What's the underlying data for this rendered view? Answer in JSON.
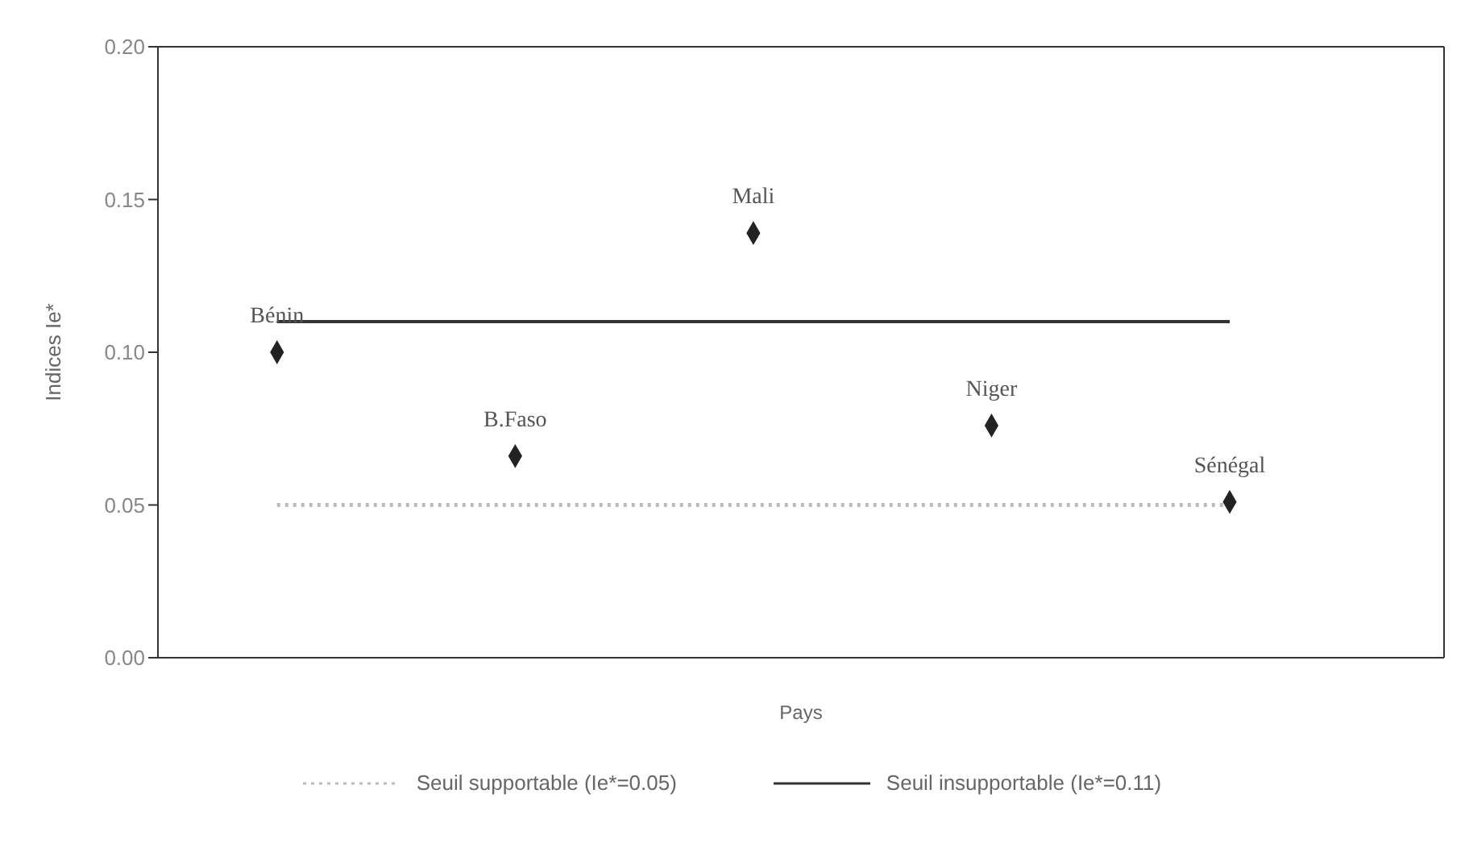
{
  "chart_data": {
    "type": "scatter",
    "xlabel": "Pays",
    "ylabel": "Indices Ie*",
    "categories": [
      "Bénin",
      "B.Faso",
      "Mali",
      "Niger",
      "Sénégal"
    ],
    "series": [
      {
        "color": "#222222",
        "values": [
          0.1,
          0.066,
          0.139,
          0.076,
          0.051
        ]
      }
    ],
    "ylim": [
      0,
      0.2
    ],
    "yticks": [
      {
        "value": 0,
        "label": "0.00"
      },
      {
        "value": 0.05,
        "label": "0.05"
      },
      {
        "value": 0.1,
        "label": "0.10"
      },
      {
        "value": 0.15,
        "label": "0.15"
      },
      {
        "value": 0.2,
        "label": "0.20"
      }
    ],
    "ref_lines": [
      {
        "axis": "y",
        "value": 0.05,
        "label": "Seuil supportable (Ie*=0.05)",
        "line_style": "dotted",
        "color": "#bbbbbb"
      },
      {
        "axis": "y",
        "value": 0.11,
        "label": "Seuil insupportable (Ie*=0.11)",
        "line_style": "solid",
        "color": "#333333"
      }
    ],
    "marker": "diamond",
    "tick_labels": "y",
    "legend": "bottom"
  }
}
